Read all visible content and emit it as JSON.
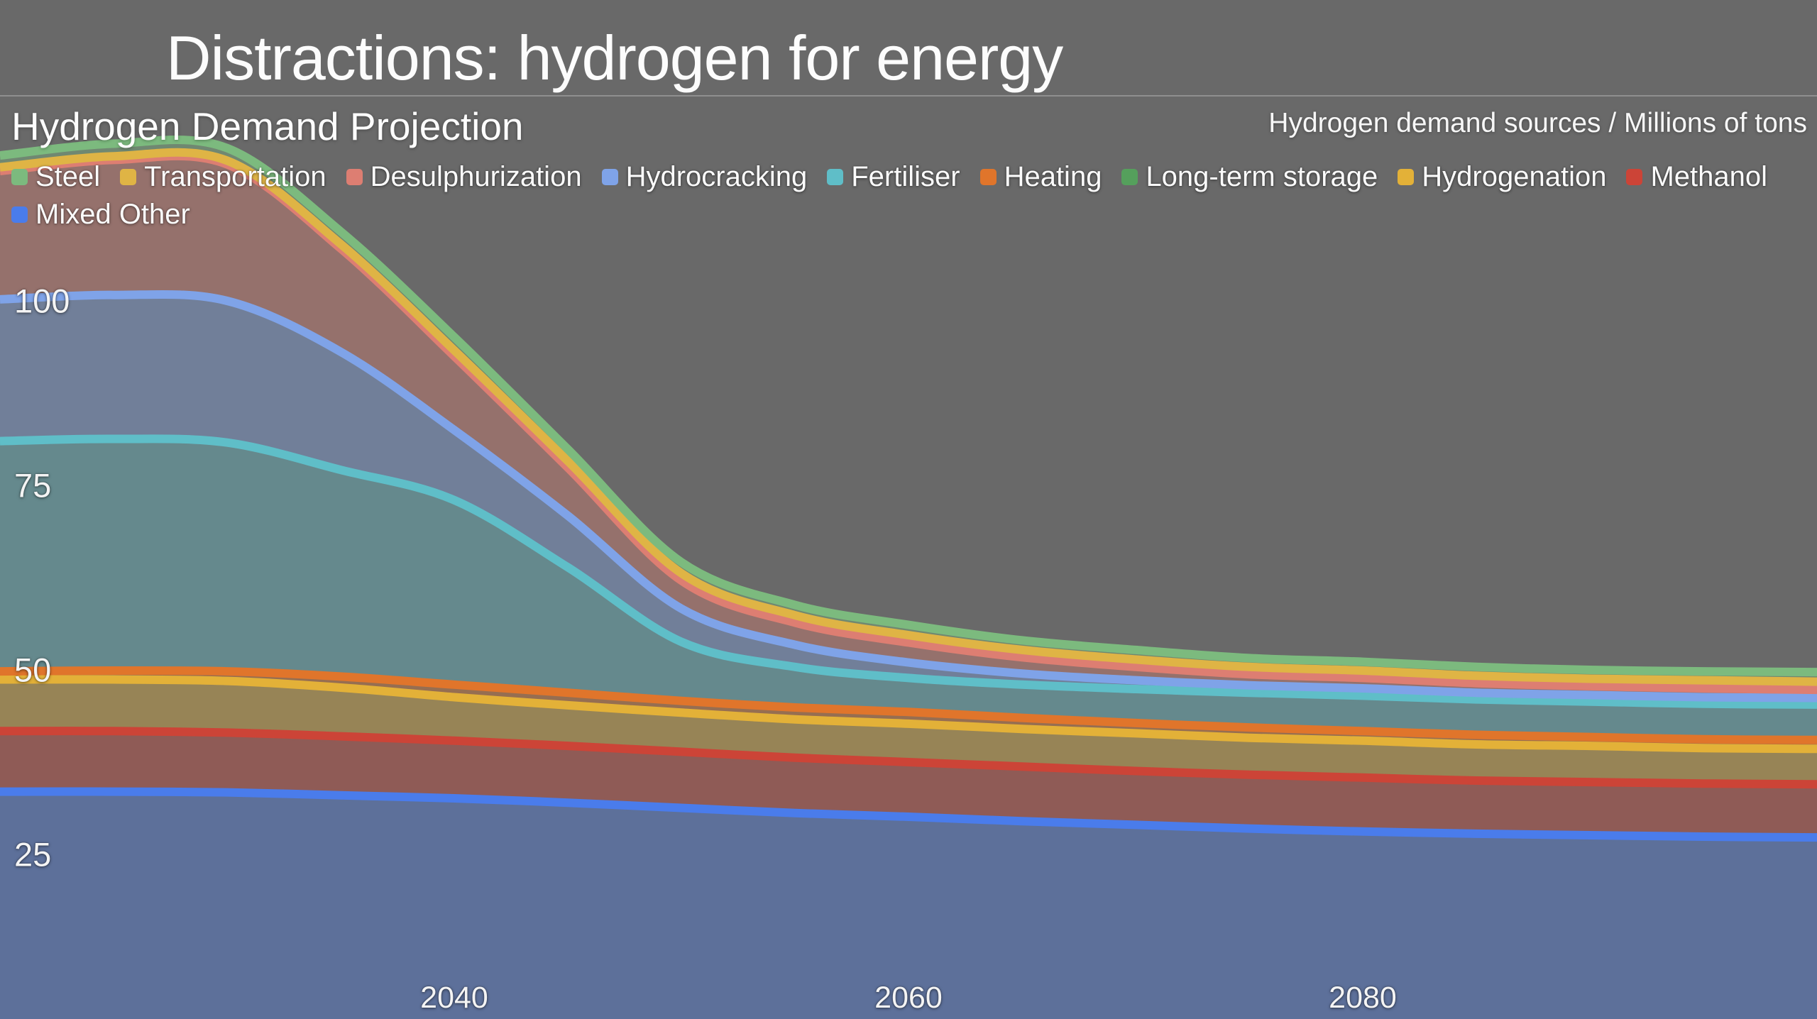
{
  "slide": {
    "title": "Distractions: hydrogen for energy"
  },
  "chart": {
    "title": "Hydrogen Demand Projection",
    "caption": "Hydrogen demand sources / Millions of tons",
    "background_color": "#696969"
  },
  "chart_data": {
    "type": "area",
    "stacked": true,
    "title": "Hydrogen Demand Projection",
    "units_label": "Hydrogen demand sources / Millions of tons",
    "x_domain": [
      2020,
      2100
    ],
    "y_domain": [
      0,
      128
    ],
    "x_ticks": [
      2040,
      2060,
      2080
    ],
    "y_ticks": [
      25,
      50,
      75,
      100
    ],
    "grid": false,
    "legend_position": "top",
    "legend_order": [
      "Steel",
      "Transportation",
      "Desulphurization",
      "Hydrocracking",
      "Fertiliser",
      "Heating",
      "Long-term storage",
      "Hydrogenation",
      "Methanol",
      "Mixed Other"
    ],
    "x": [
      2020,
      2025,
      2030,
      2035,
      2040,
      2045,
      2050,
      2055,
      2060,
      2065,
      2070,
      2075,
      2080,
      2085,
      2090,
      2095,
      2100
    ],
    "series": [
      {
        "name": "Mixed Other",
        "color": "#4A7CEB",
        "values": [
          33.5,
          33.5,
          33.4,
          33.0,
          32.6,
          32.0,
          31.3,
          30.6,
          30.1,
          29.5,
          29.0,
          28.5,
          28.1,
          27.8,
          27.6,
          27.4,
          27.3
        ]
      },
      {
        "name": "Methanol",
        "color": "#CC4437",
        "values": [
          8.2,
          8.2,
          8.1,
          8.0,
          7.8,
          7.7,
          7.6,
          7.5,
          7.4,
          7.4,
          7.3,
          7.3,
          7.3,
          7.2,
          7.2,
          7.2,
          7.2
        ]
      },
      {
        "name": "Hydrogenation",
        "color": "#E3B138",
        "values": [
          7.0,
          7.0,
          7.0,
          6.6,
          5.9,
          5.5,
          5.3,
          5.2,
          5.2,
          5.1,
          5.1,
          5.0,
          5.0,
          4.9,
          4.9,
          4.8,
          4.8
        ]
      },
      {
        "name": "Long-term storage",
        "color": "#55A05C",
        "values": [
          0,
          0,
          0,
          0,
          0,
          0,
          0,
          0,
          0,
          0,
          0,
          0,
          0,
          0,
          0,
          0,
          0
        ]
      },
      {
        "name": "Heating",
        "color": "#E0752B",
        "values": [
          1.1,
          1.2,
          1.3,
          1.5,
          1.7,
          1.7,
          1.6,
          1.6,
          1.6,
          1.5,
          1.4,
          1.4,
          1.3,
          1.3,
          1.2,
          1.2,
          1.2
        ]
      },
      {
        "name": "Fertiliser",
        "color": "#5FBEC8",
        "values": [
          31.2,
          31.4,
          31.0,
          28.0,
          25.0,
          17.0,
          8.0,
          5.5,
          4.6,
          4.5,
          4.6,
          4.7,
          4.8,
          4.8,
          4.8,
          4.8,
          4.8
        ]
      },
      {
        "name": "Hydrocracking",
        "color": "#7FA3E8",
        "values": [
          19.2,
          19.5,
          19.2,
          16.0,
          9.5,
          7.0,
          4.5,
          3.0,
          2.1,
          1.5,
          1.2,
          1.0,
          1.0,
          0.9,
          0.9,
          0.9,
          0.9
        ]
      },
      {
        "name": "Desulphurization",
        "color": "#DD7E72",
        "values": [
          17.4,
          18.3,
          18.5,
          14.0,
          10.0,
          6.5,
          3.8,
          3.0,
          2.7,
          2.2,
          1.8,
          1.5,
          1.4,
          1.3,
          1.2,
          1.2,
          1.1
        ]
      },
      {
        "name": "Transportation",
        "color": "#DFB445",
        "values": [
          0.5,
          0.5,
          0.5,
          0.6,
          0.8,
          0.9,
          1.0,
          1.0,
          1.0,
          1.0,
          1.0,
          1.0,
          1.0,
          1.0,
          1.0,
          1.1,
          1.1
        ]
      },
      {
        "name": "Steel",
        "color": "#7CBA7E",
        "values": [
          1.6,
          1.7,
          1.7,
          1.7,
          1.8,
          1.6,
          1.5,
          1.4,
          1.4,
          1.3,
          1.3,
          1.2,
          1.2,
          1.2,
          1.2,
          1.2,
          1.3
        ]
      }
    ]
  }
}
